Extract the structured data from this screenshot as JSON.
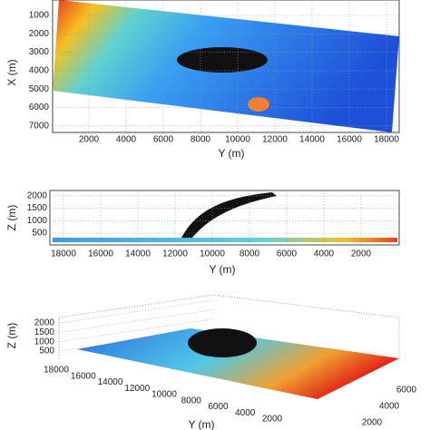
{
  "panels": [
    {
      "x_label": "Y (m)",
      "y_label": "X (m)",
      "xticks": [
        2000,
        4000,
        6000,
        8000,
        10000,
        12000,
        14000,
        16000,
        18000
      ],
      "yticks": [
        1000,
        2000,
        3000,
        4000,
        5000,
        6000,
        7000
      ]
    },
    {
      "x_label": "Y (m)",
      "y_label": "Z (m)",
      "xticks": [
        18000,
        16000,
        14000,
        12000,
        10000,
        8000,
        6000,
        4000,
        2000
      ],
      "yticks": [
        500,
        1000,
        1500,
        2000
      ]
    },
    {
      "y_label": "Y (m)",
      "z_label": "Z (m)",
      "zticks": [
        500,
        1000,
        1500,
        2000
      ],
      "yticks": [
        18000,
        16000,
        14000,
        12000,
        10000,
        8000,
        6000,
        4000,
        2000
      ],
      "xticks": [
        2000,
        4000,
        6000
      ]
    }
  ]
}
